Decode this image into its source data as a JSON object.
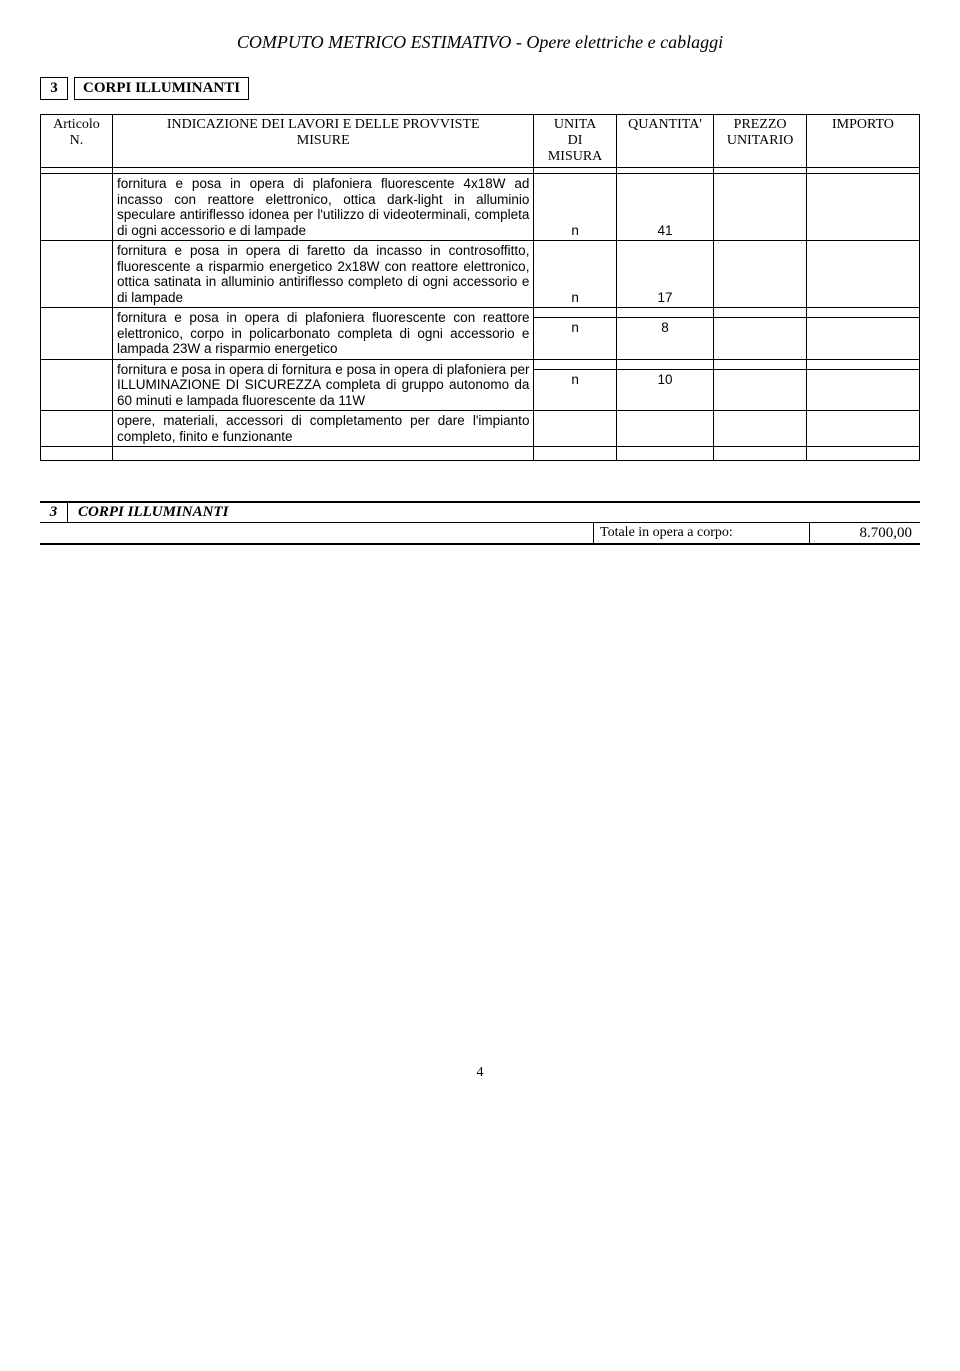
{
  "header": {
    "title": "COMPUTO METRICO ESTIMATIVO - Opere elettriche e cablaggi"
  },
  "section": {
    "number": "3",
    "title": "CORPI ILLUMINANTI"
  },
  "table": {
    "columns": {
      "art1": "Articolo",
      "art2": "N.",
      "desc1": "INDICAZIONE DEI LAVORI E DELLE PROVVISTE",
      "desc2": "MISURE",
      "unit1": "UNITA",
      "unit2": "DI",
      "unit3": "MISURA",
      "qty": "QUANTITA'",
      "prezzo1": "PREZZO",
      "prezzo2": "UNITARIO",
      "imp": "IMPORTO"
    },
    "rows": [
      {
        "desc": "fornitura e posa in opera di plafoniera fluorescente 4x18W ad incasso con reattore elettronico, ottica dark-light in alluminio speculare antiriflesso idonea per l'utilizzo di videoterminali, completa di ogni accessorio e di lampade",
        "unit": "n",
        "qty": "41"
      },
      {
        "desc": "fornitura e posa in opera di faretto da incasso in controsoffitto, fluorescente a risparmio energetico 2x18W con reattore elettronico, ottica satinata in alluminio antiriflesso completo di ogni accessorio e di lampade",
        "unit": "n",
        "qty": "17"
      },
      {
        "desc": "fornitura e posa in opera di plafoniera fluorescente con reattore elettronico, corpo in policarbonato completa di ogni accessorio e lampada 23W a risparmio energetico",
        "unit": "n",
        "qty": "8"
      },
      {
        "desc": "fornitura e posa in opera di fornitura e posa in opera di plafoniera per ILLUMINAZIONE DI SICUREZZA completa di gruppo autonomo da 60 minuti e lampada fluorescente da 11W",
        "unit": "n",
        "qty": "10"
      },
      {
        "desc": "opere, materiali, accessori di completamento per dare l'impianto completo, finito e funzionante",
        "unit": "",
        "qty": ""
      }
    ]
  },
  "summary": {
    "number": "3",
    "title": "CORPI ILLUMINANTI",
    "total_label": "Totale in opera a corpo:",
    "total_value": "8.700,00"
  },
  "page": {
    "number": "4"
  }
}
